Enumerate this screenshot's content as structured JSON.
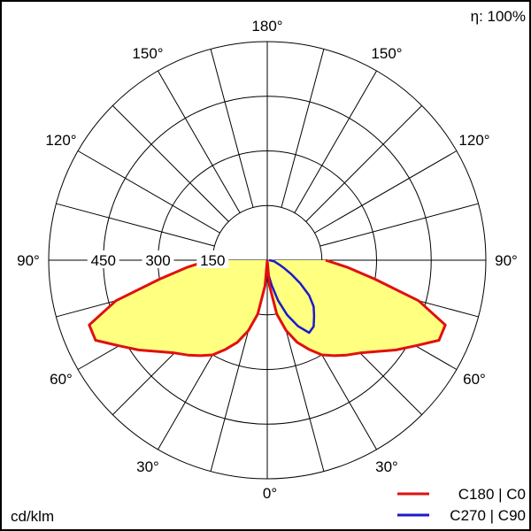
{
  "chart_data": {
    "type": "polar",
    "efficiency_label": "η: 100%",
    "unit_label": "cd/klm",
    "radial_ticks": [
      150,
      300,
      450
    ],
    "r_max": 600,
    "angle_labels": {
      "top": "180°",
      "upper": "150°",
      "mid_upper": "120°",
      "horizontal": "90°",
      "mid_lower": "60°",
      "lower": "30°",
      "bottom": "0°"
    },
    "colors": {
      "fill": "#ffff80",
      "c0": "#e01010",
      "c90": "#1a1acc"
    },
    "series": [
      {
        "name": "C180 | C0",
        "color": "#e01010",
        "gamma": [
          0,
          5,
          10,
          15,
          20,
          25,
          30,
          35,
          40,
          45,
          50,
          55,
          60,
          65,
          70,
          75,
          80,
          85,
          90
        ],
        "intensity": [
          0,
          70,
          150,
          200,
          240,
          270,
          300,
          320,
          340,
          360,
          390,
          430,
          470,
          520,
          520,
          430,
          300,
          220,
          160
        ]
      },
      {
        "name": "C270 | C90",
        "color": "#1a1acc",
        "gamma": [
          0,
          5,
          10,
          15,
          20,
          25,
          30,
          35,
          40,
          45,
          50,
          55,
          60,
          65,
          70,
          75,
          80,
          85,
          90
        ],
        "intensity": [
          0,
          40,
          70,
          115,
          160,
          200,
          230,
          222,
          200,
          180,
          150,
          110,
          75,
          50,
          35,
          25,
          20,
          10,
          5
        ]
      }
    ]
  }
}
